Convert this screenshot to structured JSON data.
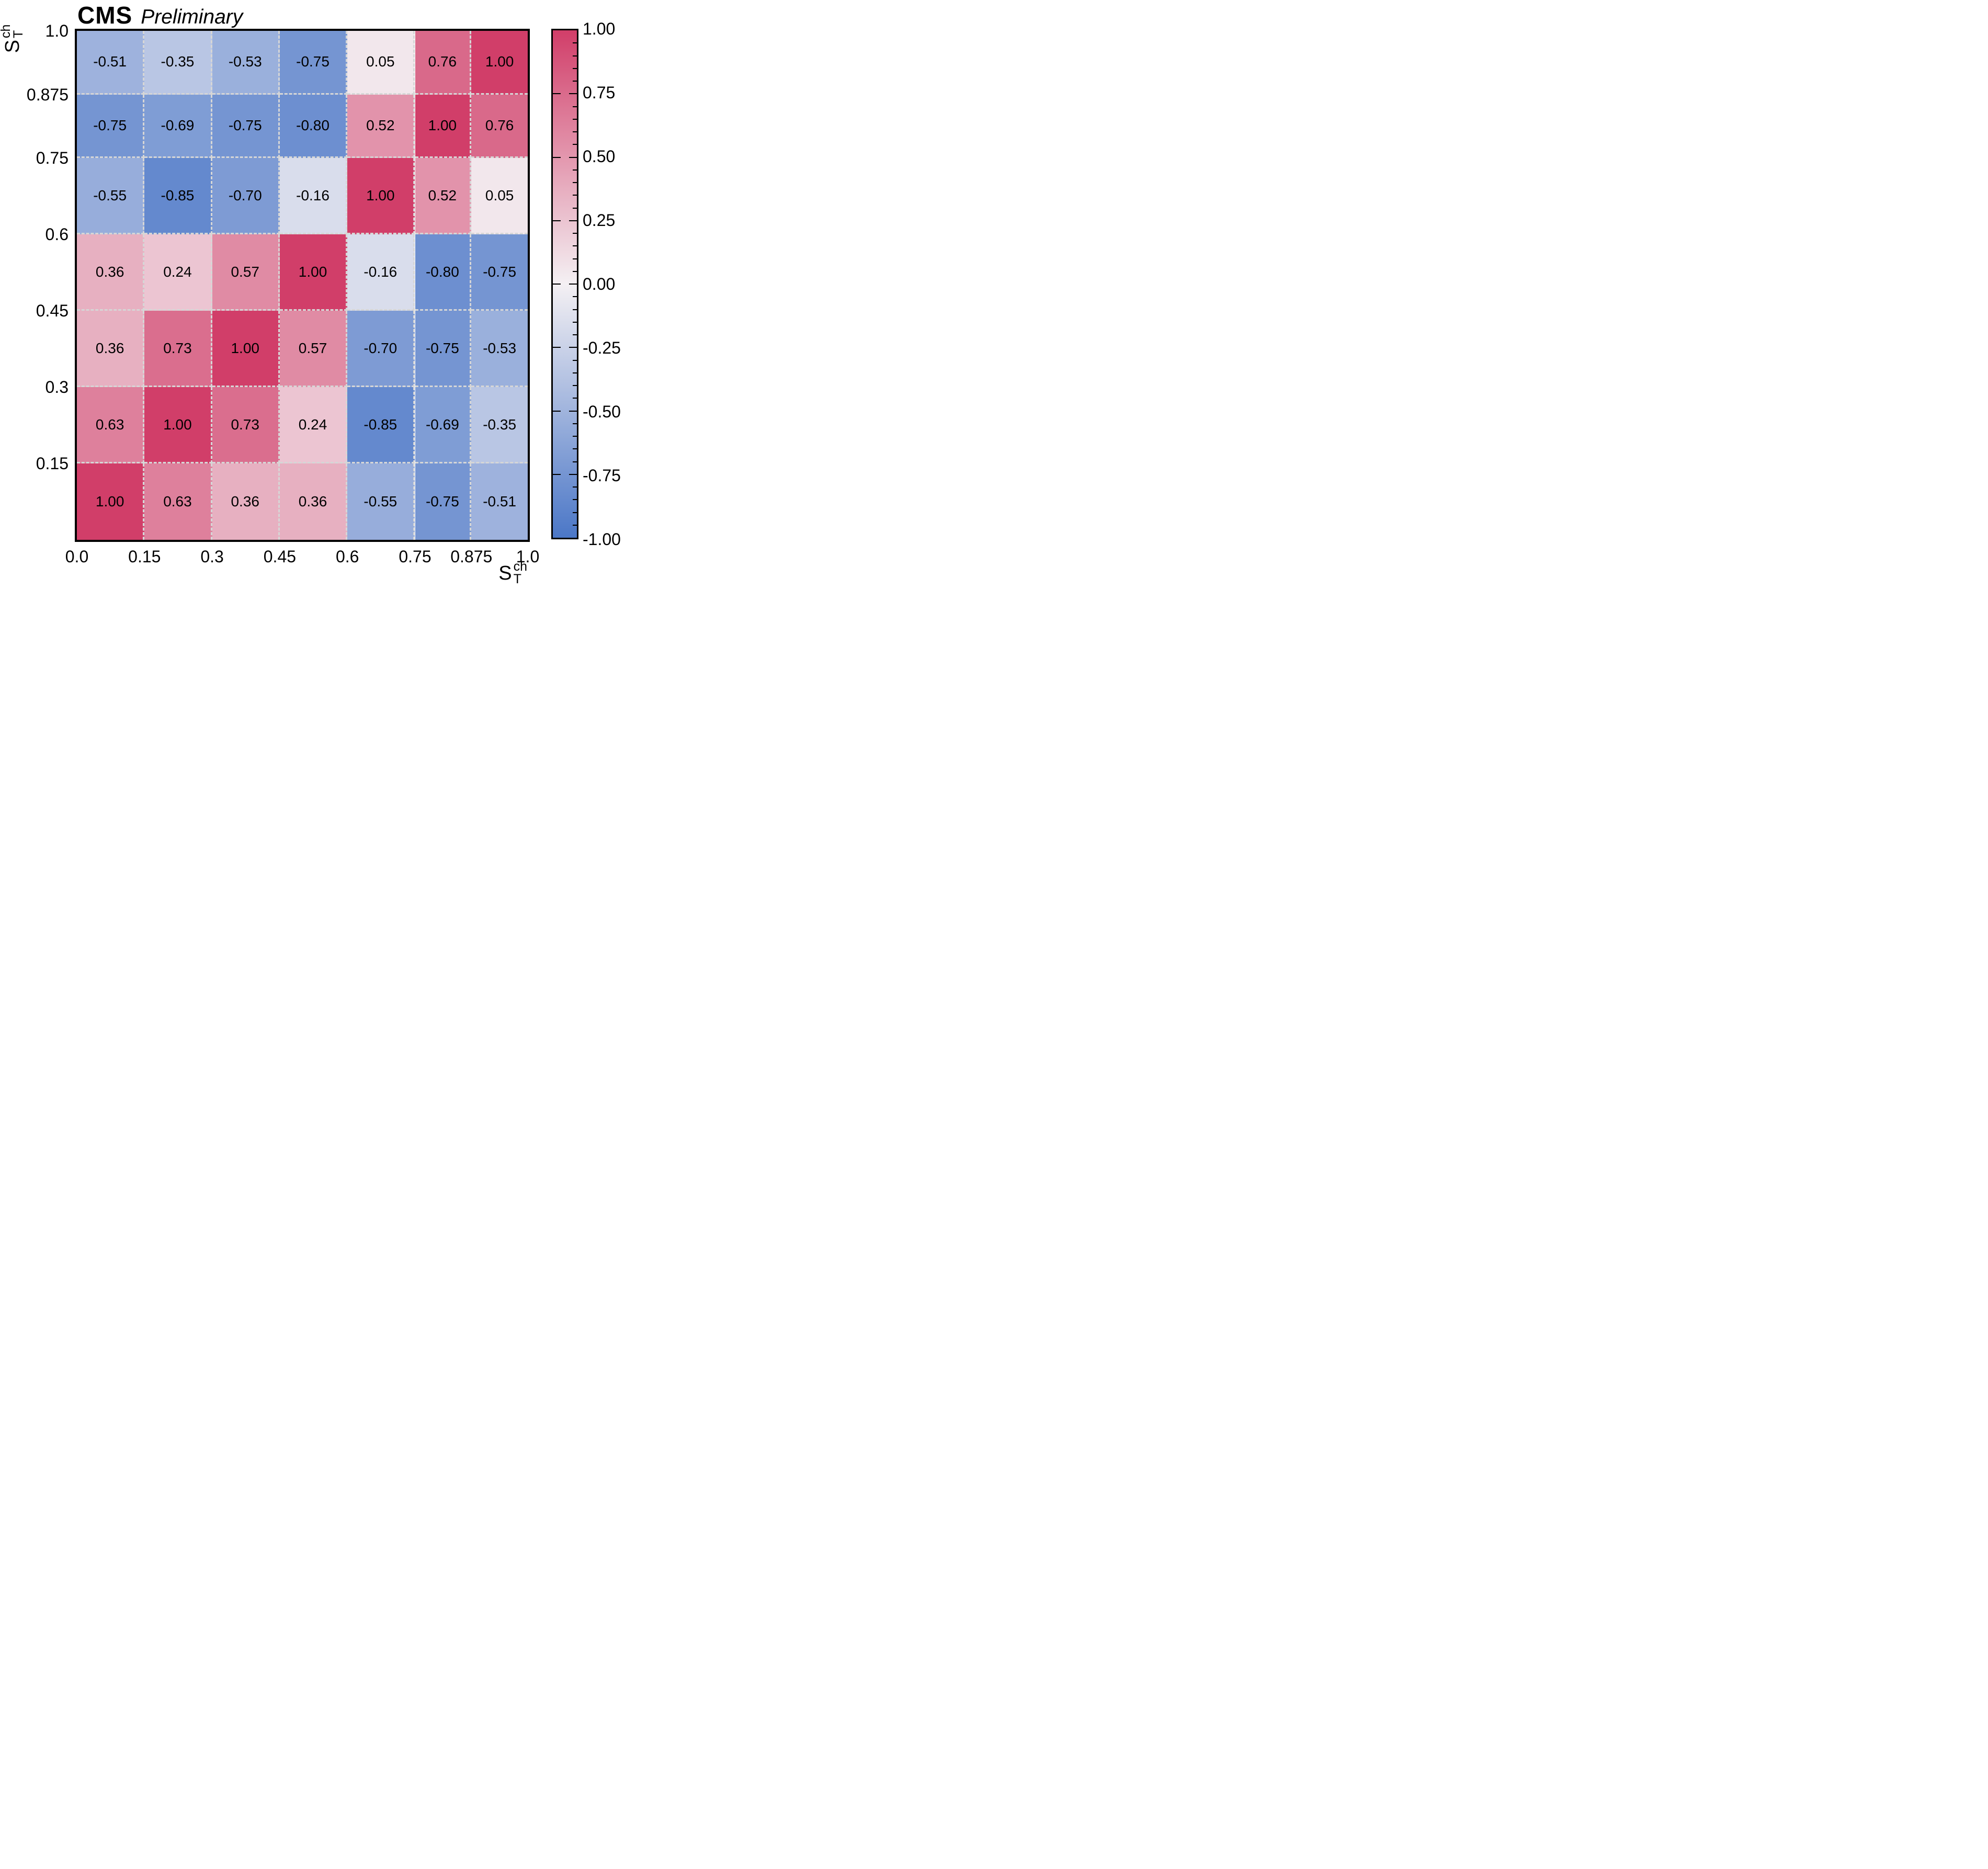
{
  "header": {
    "experiment": "CMS",
    "status": "Preliminary"
  },
  "axis_symbol": {
    "base": "S",
    "sup": "ch",
    "sub": "T"
  },
  "chart_data": {
    "type": "heatmap",
    "title": "CMS Preliminary",
    "xlabel": "S_T^{ch}",
    "ylabel": "S_T^{ch}",
    "bin_edges": [
      0.0,
      0.15,
      0.3,
      0.45,
      0.6,
      0.75,
      0.875,
      1.0
    ],
    "x_tick_labels": [
      "0.0",
      "0.15",
      "0.3",
      "0.45",
      "0.6",
      "0.75",
      "0.875",
      "1.0"
    ],
    "x_tick_values": [
      0.0,
      0.15,
      0.3,
      0.45,
      0.6,
      0.75,
      0.875,
      1.0
    ],
    "y_tick_labels": [
      "1.0",
      "0.875",
      "0.75",
      "0.6",
      "0.45",
      "0.3",
      "0.15"
    ],
    "y_tick_values": [
      1.0,
      0.875,
      0.75,
      0.6,
      0.45,
      0.3,
      0.15
    ],
    "rows_top_to_bottom": [
      [
        -0.51,
        -0.35,
        -0.53,
        -0.75,
        0.05,
        0.76,
        1.0
      ],
      [
        -0.75,
        -0.69,
        -0.75,
        -0.8,
        0.52,
        1.0,
        0.76
      ],
      [
        -0.55,
        -0.85,
        -0.7,
        -0.16,
        1.0,
        0.52,
        0.05
      ],
      [
        0.36,
        0.24,
        0.57,
        1.0,
        -0.16,
        -0.8,
        -0.75
      ],
      [
        0.36,
        0.73,
        1.0,
        0.57,
        -0.7,
        -0.75,
        -0.53
      ],
      [
        0.63,
        1.0,
        0.73,
        0.24,
        -0.85,
        -0.69,
        -0.35
      ],
      [
        1.0,
        0.63,
        0.36,
        0.36,
        -0.55,
        -0.75,
        -0.51
      ]
    ],
    "value_format_decimals": 2,
    "zlim": [
      -1,
      1
    ],
    "grid": "dashed cell borders",
    "legend_position": "none",
    "colorbar": {
      "position": "right",
      "min": -1.0,
      "max": 1.0,
      "major_step": 0.25,
      "minor_step": 0.05,
      "tick_values": [
        1.0,
        0.75,
        0.5,
        0.25,
        0.0,
        -0.25,
        -0.5,
        -0.75,
        -1.0
      ],
      "tick_labels": [
        "1.00",
        "0.75",
        "0.50",
        "0.25",
        "0.00",
        "-0.25",
        "-0.50",
        "-0.75",
        "-1.00"
      ]
    }
  },
  "colors": {
    "positive_end": "#d13e69",
    "mid_white": "#f4f0f3",
    "negative_end": "#4b77c7",
    "grid_dash": "#d6d6d6",
    "frame": "#000000",
    "text": "#000000",
    "background": "#ffffff"
  }
}
